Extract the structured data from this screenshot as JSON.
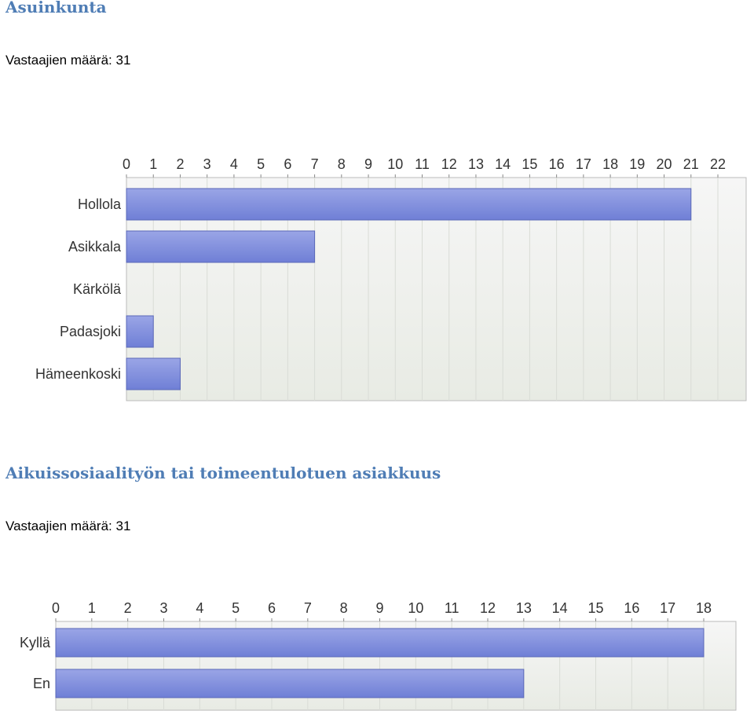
{
  "sections": [
    {
      "title": "Asuinkunta",
      "respondents_label": "Vastaajien määrä:",
      "respondents_value": "31"
    },
    {
      "title": "Aikuissosiaalityön tai toimeentulotuen asiakkuus",
      "respondents_label": "Vastaajien määrä:",
      "respondents_value": "31"
    }
  ],
  "colors": {
    "bar_top": "#9aa5e6",
    "bar_bottom": "#6f7fd6",
    "bar_edge": "#5a68b8",
    "plot_bg_top": "#f4f4f4",
    "plot_bg_bottom": "#e9ece6",
    "grid": "#d8d8d8",
    "title": "#4f7db5"
  },
  "chart_data": [
    {
      "type": "bar",
      "orientation": "horizontal",
      "categories": [
        "Hollola",
        "Asikkala",
        "Kärkölä",
        "Padasjoki",
        "Hämeenkoski"
      ],
      "values": [
        21,
        7,
        0,
        1,
        2
      ],
      "xlim": [
        0,
        22
      ],
      "ticks": [
        "0",
        "1",
        "2",
        "3",
        "4",
        "5",
        "6",
        "7",
        "8",
        "9",
        "10",
        "11",
        "12",
        "13",
        "14",
        "15",
        "16",
        "17",
        "18",
        "19",
        "20",
        "21",
        "22"
      ],
      "grid": true,
      "axis_position": "top"
    },
    {
      "type": "bar",
      "orientation": "horizontal",
      "categories": [
        "Kyllä",
        "En"
      ],
      "values": [
        18,
        13
      ],
      "xlim": [
        0,
        18
      ],
      "ticks": [
        "0",
        "1",
        "2",
        "3",
        "4",
        "5",
        "6",
        "7",
        "8",
        "9",
        "10",
        "11",
        "12",
        "13",
        "14",
        "15",
        "16",
        "17",
        "18"
      ],
      "grid": true,
      "axis_position": "top"
    }
  ]
}
